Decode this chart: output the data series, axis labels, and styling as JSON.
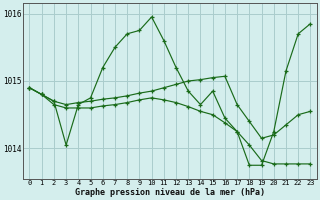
{
  "title": "Graphe pression niveau de la mer (hPa)",
  "background_color": "#d4eeed",
  "grid_color": "#aacccc",
  "line_color": "#1a6b1a",
  "xlim": [
    -0.5,
    23.5
  ],
  "ylim": [
    1013.55,
    1016.15
  ],
  "yticks": [
    1014,
    1015,
    1016
  ],
  "xticks": [
    0,
    1,
    2,
    3,
    4,
    5,
    6,
    7,
    8,
    9,
    10,
    11,
    12,
    13,
    14,
    15,
    16,
    17,
    18,
    19,
    20,
    21,
    22,
    23
  ],
  "series": {
    "line1": {
      "x": [
        0,
        1,
        2,
        3,
        4,
        5,
        6,
        7,
        8,
        9,
        10,
        11,
        12,
        13,
        14,
        15,
        16,
        17,
        18,
        19,
        20,
        21,
        22,
        23
      ],
      "y": [
        1014.9,
        1014.8,
        1014.7,
        1014.05,
        1014.65,
        1014.75,
        1015.2,
        1015.5,
        1015.7,
        1015.75,
        1015.95,
        1015.6,
        1015.2,
        1014.85,
        1014.65,
        1014.85,
        1014.45,
        1014.25,
        1013.75,
        1013.75,
        1014.25,
        1015.15,
        1015.7,
        1015.85
      ]
    },
    "line2": {
      "x": [
        0,
        1,
        2,
        3,
        4,
        5,
        6,
        7,
        8,
        9,
        10,
        11,
        12,
        13,
        14,
        15,
        16,
        17,
        18,
        19,
        20,
        21,
        22,
        23
      ],
      "y": [
        1014.9,
        1014.8,
        1014.7,
        1014.65,
        1014.68,
        1014.7,
        1014.73,
        1014.75,
        1014.78,
        1014.82,
        1014.85,
        1014.9,
        1014.95,
        1015.0,
        1015.02,
        1015.05,
        1015.07,
        1014.65,
        1014.4,
        1014.15,
        1014.2,
        1014.35,
        1014.5,
        1014.55
      ]
    },
    "line3": {
      "x": [
        0,
        1,
        2,
        3,
        4,
        5,
        6,
        7,
        8,
        9,
        10,
        11,
        12,
        13,
        14,
        15,
        16,
        17,
        18,
        19,
        20,
        21,
        22,
        23
      ],
      "y": [
        1014.9,
        1014.8,
        1014.65,
        1014.6,
        1014.6,
        1014.6,
        1014.63,
        1014.65,
        1014.68,
        1014.72,
        1014.75,
        1014.72,
        1014.68,
        1014.62,
        1014.55,
        1014.5,
        1014.38,
        1014.25,
        1014.05,
        1013.82,
        1013.77,
        1013.77,
        1013.77,
        1013.77
      ]
    }
  }
}
